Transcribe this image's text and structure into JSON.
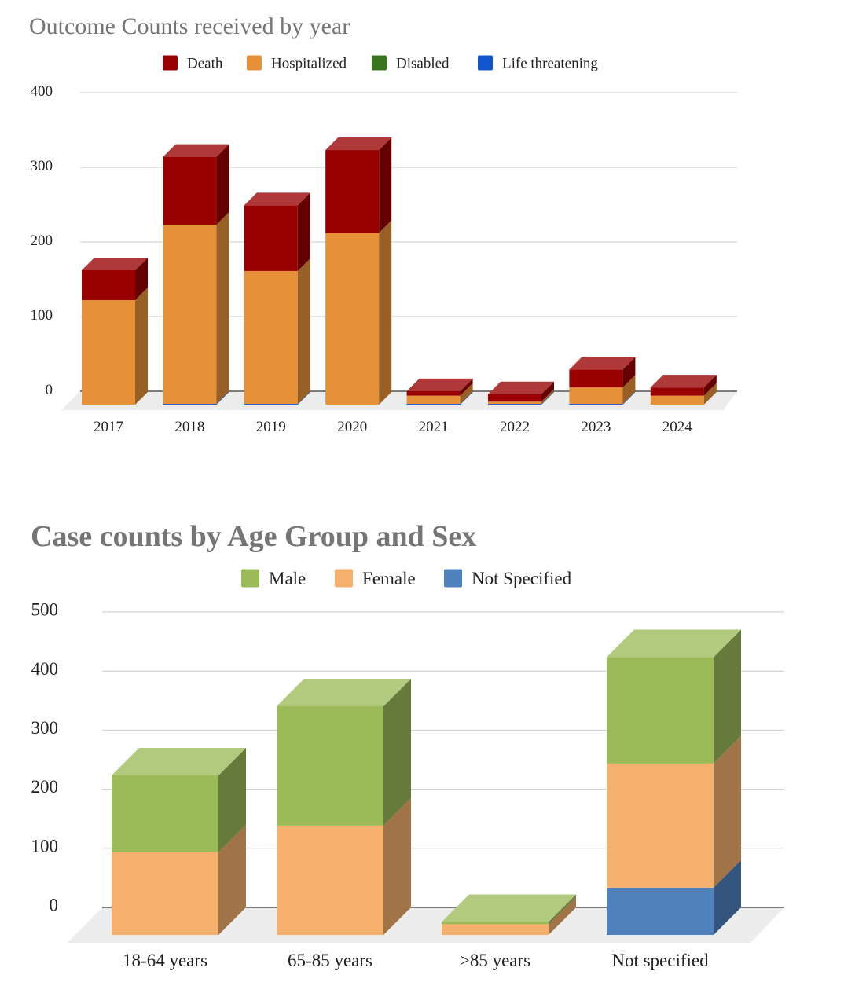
{
  "chart_data": [
    {
      "type": "bar",
      "stacked": true,
      "three_d": true,
      "title": "Outcome Counts received by year",
      "legend_position": "top",
      "categories": [
        "2017",
        "2018",
        "2019",
        "2020",
        "2021",
        "2022",
        "2023",
        "2024"
      ],
      "series": [
        {
          "name": "Life threatening",
          "color": "#1155cc",
          "values": [
            0,
            1,
            1,
            0,
            1,
            1,
            1,
            0
          ]
        },
        {
          "name": "Disabled",
          "color": "#38761d",
          "values": [
            0,
            0,
            0,
            0,
            0,
            0,
            0,
            0
          ]
        },
        {
          "name": "Hospitalized",
          "color": "#e69138",
          "values": [
            140,
            240,
            178,
            230,
            11,
            3,
            22,
            12
          ]
        },
        {
          "name": "Death",
          "color": "#990000",
          "values": [
            40,
            91,
            88,
            111,
            6,
            10,
            24,
            11
          ]
        }
      ],
      "legend_order": [
        "Death",
        "Hospitalized",
        "Disabled",
        "Life threatening"
      ],
      "yticks": [
        0,
        100,
        200,
        300,
        400
      ],
      "ylim": [
        0,
        400
      ],
      "grid": true
    },
    {
      "type": "bar",
      "stacked": true,
      "three_d": true,
      "title": "Case counts by Age Group and Sex",
      "legend_position": "top",
      "categories": [
        "18-64 years",
        "65-85 years",
        ">85 years",
        "Not specified"
      ],
      "series": [
        {
          "name": "Not Specified",
          "color": "#4f81bd",
          "values": [
            0,
            0,
            0,
            80
          ]
        },
        {
          "name": "Female",
          "color": "#f4b06c",
          "values": [
            140,
            185,
            18,
            210
          ]
        },
        {
          "name": "Male",
          "color": "#9bbb59",
          "values": [
            130,
            202,
            4,
            180
          ]
        }
      ],
      "legend_order": [
        "Male",
        "Female",
        "Not Specified"
      ],
      "yticks": [
        0,
        100,
        200,
        300,
        400,
        500
      ],
      "ylim": [
        0,
        500
      ],
      "grid": true
    }
  ]
}
